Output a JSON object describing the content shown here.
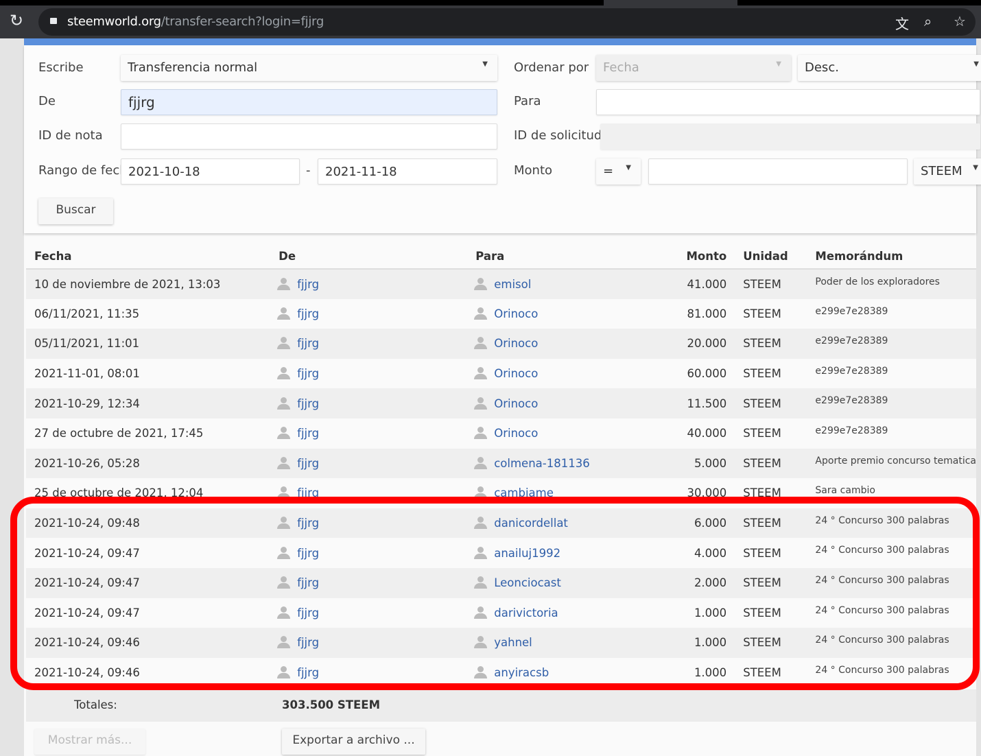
{
  "browser": {
    "url_domain": "steemworld.org",
    "url_path": "/transfer-search?login=fjjrg",
    "icons": [
      "reload-icon",
      "lock-icon",
      "translate-icon",
      "zoom-icon",
      "star-icon"
    ]
  },
  "form": {
    "type_label": "Escribe",
    "type_value": "Transferencia normal",
    "order_label": "Ordenar por",
    "order_value": "Fecha",
    "direction_value": "Desc.",
    "from_label": "De",
    "from_value": "fjjrg",
    "to_label": "Para",
    "to_value": "",
    "memo_id_label": "ID de nota",
    "memo_id_value": "",
    "request_id_label": "ID de solicitud",
    "request_id_value": "",
    "date_range_label": "Rango de fech",
    "date_from": "2021-10-18",
    "date_sep": "-",
    "date_to": "2021-11-18",
    "amount_label": "Monto",
    "amount_op": "=",
    "amount_value": "",
    "unit_value": "STEEM",
    "search_button": "Buscar"
  },
  "table": {
    "headers": [
      "Fecha",
      "De",
      "Para",
      "Monto",
      "Unidad",
      "Memorándum"
    ],
    "rows": [
      {
        "date": "10 de noviembre de 2021, 13:03",
        "from": "fjjrg",
        "to": "emisol",
        "amount": "41.000",
        "unit": "STEEM",
        "memo": "Poder de los exploradores"
      },
      {
        "date": "06/11/2021, 11:35",
        "from": "fjjrg",
        "to": "Orinoco",
        "amount": "81.000",
        "unit": "STEEM",
        "memo": "e299e7e28389"
      },
      {
        "date": "05/11/2021, 11:01",
        "from": "fjjrg",
        "to": "Orinoco",
        "amount": "20.000",
        "unit": "STEEM",
        "memo": "e299e7e28389"
      },
      {
        "date": "2021-11-01, 08:01",
        "from": "fjjrg",
        "to": "Orinoco",
        "amount": "60.000",
        "unit": "STEEM",
        "memo": "e299e7e28389"
      },
      {
        "date": "2021-10-29, 12:34",
        "from": "fjjrg",
        "to": "Orinoco",
        "amount": "11.500",
        "unit": "STEEM",
        "memo": "e299e7e28389"
      },
      {
        "date": "27 de octubre de 2021, 17:45",
        "from": "fjjrg",
        "to": "Orinoco",
        "amount": "40.000",
        "unit": "STEEM",
        "memo": "e299e7e28389"
      },
      {
        "date": "2021-10-26, 05:28",
        "from": "fjjrg",
        "to": "colmena-181136",
        "amount": "5.000",
        "unit": "STEEM",
        "memo": "Aporte premio concurso tematica"
      },
      {
        "date": "25 de octubre de 2021, 12:04",
        "from": "fjjrg",
        "to": "cambiame",
        "amount": "30.000",
        "unit": "STEEM",
        "memo": "Sara cambio"
      },
      {
        "date": "2021-10-24, 09:48",
        "from": "fjjrg",
        "to": "danicordellat",
        "amount": "6.000",
        "unit": "STEEM",
        "memo": "24 ° Concurso 300 palabras"
      },
      {
        "date": "2021-10-24, 09:47",
        "from": "fjjrg",
        "to": "anailuj1992",
        "amount": "4.000",
        "unit": "STEEM",
        "memo": "24 ° Concurso 300 palabras"
      },
      {
        "date": "2021-10-24, 09:47",
        "from": "fjjrg",
        "to": "Leonciocast",
        "amount": "2.000",
        "unit": "STEEM",
        "memo": "24 ° Concurso 300 palabras"
      },
      {
        "date": "2021-10-24, 09:47",
        "from": "fjjrg",
        "to": "darivictoria",
        "amount": "1.000",
        "unit": "STEEM",
        "memo": "24 ° Concurso 300 palabras"
      },
      {
        "date": "2021-10-24, 09:46",
        "from": "fjjrg",
        "to": "yahnel",
        "amount": "1.000",
        "unit": "STEEM",
        "memo": "24 ° Concurso 300 palabras"
      },
      {
        "date": "2021-10-24, 09:46",
        "from": "fjjrg",
        "to": "anyiracsb",
        "amount": "1.000",
        "unit": "STEEM",
        "memo": "24 ° Concurso 300 palabras"
      }
    ],
    "totals_label": "Totales:",
    "totals_value": "303.500 STEEM"
  },
  "footer": {
    "show_more": "Mostrar más...",
    "export": "Exportar a archivo ..."
  },
  "colors": {
    "accent": "#5a8fdc",
    "link": "#2f5ea8",
    "highlight": "#ff0000"
  }
}
